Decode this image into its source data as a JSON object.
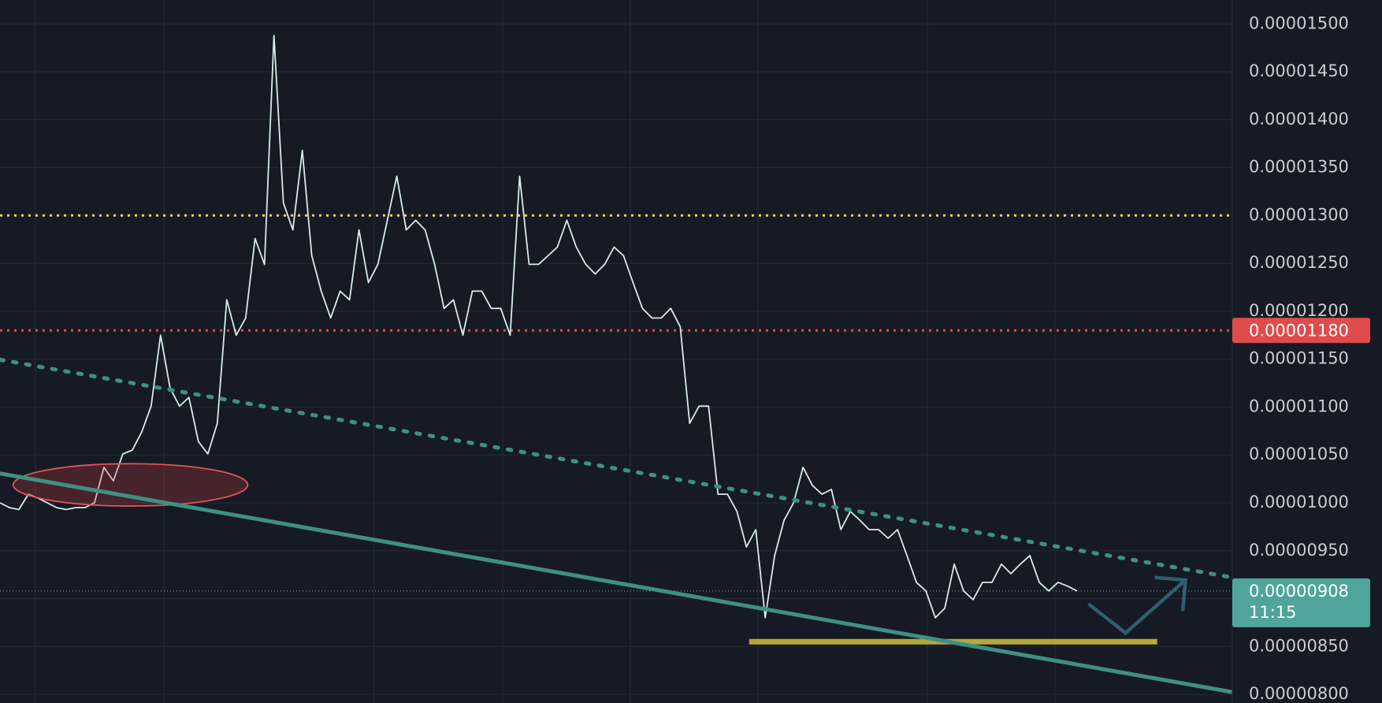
{
  "chart_data": {
    "type": "line",
    "ylim": [
      7.91e-06,
      1.525e-05
    ],
    "yticks": [
      {
        "value": 1.5e-05,
        "label": "0.00001500"
      },
      {
        "value": 1.45e-05,
        "label": "0.00001450"
      },
      {
        "value": 1.4e-05,
        "label": "0.00001400"
      },
      {
        "value": 1.35e-05,
        "label": "0.00001350"
      },
      {
        "value": 1.3e-05,
        "label": "0.00001300"
      },
      {
        "value": 1.25e-05,
        "label": "0.00001250"
      },
      {
        "value": 1.2e-05,
        "label": "0.00001200"
      },
      {
        "value": 1.15e-05,
        "label": "0.00001150"
      },
      {
        "value": 1.1e-05,
        "label": "0.00001100"
      },
      {
        "value": 1.05e-05,
        "label": "0.00001050"
      },
      {
        "value": 1e-05,
        "label": "0.00001000"
      },
      {
        "value": 9.5e-06,
        "label": "0.00000950"
      },
      {
        "value": 9e-06,
        "label": "0.00000900"
      },
      {
        "value": 8.5e-06,
        "label": "0.00000850"
      },
      {
        "value": 8e-06,
        "label": "0.00000800"
      }
    ],
    "grid": true,
    "series": [
      {
        "color": "#d6ece8",
        "values": [
          1e-05,
          9.95e-06,
          9.93e-06,
          1.009e-05,
          1.005e-05,
          1e-05,
          9.95e-06,
          9.93e-06,
          9.95e-06,
          9.95e-06,
          1e-05,
          1.037e-05,
          1.023e-05,
          1.051e-05,
          1.055e-05,
          1.074e-05,
          1.101e-05,
          1.175e-05,
          1.12e-05,
          1.101e-05,
          1.11e-05,
          1.064e-05,
          1.051e-05,
          1.083e-05,
          1.212e-05,
          1.175e-05,
          1.193e-05,
          1.276e-05,
          1.249e-05,
          1.488e-05,
          1.313e-05,
          1.285e-05,
          1.368e-05,
          1.258e-05,
          1.221e-05,
          1.193e-05,
          1.221e-05,
          1.212e-05,
          1.285e-05,
          1.23e-05,
          1.249e-05,
          1.295e-05,
          1.341e-05,
          1.285e-05,
          1.295e-05,
          1.285e-05,
          1.249e-05,
          1.203e-05,
          1.212e-05,
          1.175e-05,
          1.221e-05,
          1.221e-05,
          1.203e-05,
          1.203e-05,
          1.175e-05,
          1.341e-05,
          1.249e-05,
          1.249e-05,
          1.258e-05,
          1.267e-05,
          1.295e-05,
          1.267e-05,
          1.249e-05,
          1.239e-05,
          1.249e-05,
          1.267e-05,
          1.258e-05,
          1.23e-05,
          1.203e-05,
          1.193e-05,
          1.193e-05,
          1.203e-05,
          1.184e-05,
          1.083e-05,
          1.101e-05,
          1.101e-05,
          1.009e-05,
          1.009e-05,
          9.91e-06,
          9.54e-06,
          9.72e-06,
          8.8e-06,
          9.45e-06,
          9.82e-06,
          1e-05,
          1.037e-05,
          1.018e-05,
          1.009e-05,
          1.014e-05,
          9.72e-06,
          9.91e-06,
          9.82e-06,
          9.72e-06,
          9.72e-06,
          9.63e-06,
          9.72e-06,
          9.45e-06,
          9.17e-06,
          9.08e-06,
          8.8e-06,
          8.9e-06,
          9.36e-06,
          9.08e-06,
          8.99e-06,
          9.17e-06,
          9.17e-06,
          9.36e-06,
          9.26e-06,
          9.36e-06,
          9.45e-06,
          9.17e-06,
          9.08e-06,
          9.17e-06,
          9.13e-06,
          9.08e-06
        ]
      }
    ],
    "levels": [
      {
        "value": 1.3e-05,
        "color": "#e8d44d"
      },
      {
        "value": 1.18e-05,
        "color": "#e04b4b",
        "label": "0.00001180"
      }
    ],
    "support": {
      "value": 8.55e-06,
      "color": "#b5a83a"
    },
    "last_price": {
      "value": 9.08e-06,
      "label": "0.00000908",
      "countdown": "11:15",
      "color": "#4fa59a"
    }
  }
}
